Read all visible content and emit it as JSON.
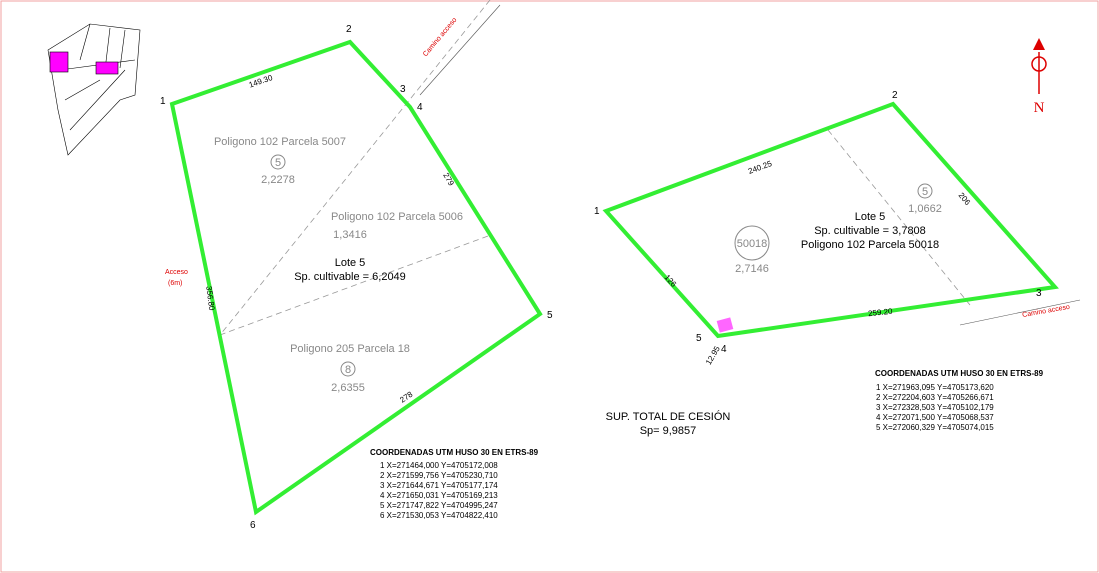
{
  "north": "N",
  "left_plot": {
    "vertices": [
      "1",
      "2",
      "3",
      "4",
      "5",
      "6"
    ],
    "edges": [
      "149.30",
      "279",
      "356.80",
      "278"
    ],
    "road": "Camino acceso",
    "access": [
      "Acceso",
      "(6m)"
    ],
    "parcels": [
      {
        "name": "Poligono 102 Parcela 5007",
        "id": "5",
        "area": "2,2278"
      },
      {
        "name": "Poligono 102 Parcela 5006",
        "area": "1,3416"
      },
      {
        "name": "Poligono 205 Parcela 18",
        "id": "8",
        "area": "2,6355"
      }
    ],
    "lot": "Lote 5",
    "cultivable": "Sp. cultivable = 6,2049",
    "coords_title": "COORDENADAS UTM HUSO 30 EN ETRS-89",
    "coords": [
      "1  X=271464,000  Y=4705172,008",
      "2  X=271599,756  Y=4705230,710",
      "3  X=271644,671  Y=4705177,174",
      "4  X=271650,031  Y=4705169,213",
      "5  X=271747,822  Y=4704995,247",
      "6  X=271530,053  Y=4704822,410"
    ]
  },
  "total": {
    "label": "SUP. TOTAL DE CESIÓN",
    "value": "Sp= 9,9857"
  },
  "right_plot": {
    "vertices": [
      "1",
      "2",
      "3",
      "4",
      "5"
    ],
    "edges": [
      "240.25",
      "206",
      "126",
      "259.20",
      "12.95"
    ],
    "road": "Camino acceso",
    "parcels": [
      {
        "id": "5",
        "area": "1,0662"
      },
      {
        "id": "50018",
        "area": "2,7146"
      }
    ],
    "lot": "Lote 5",
    "cultivable": "Sp. cultivable = 3,7808",
    "parcel_name": "Poligono 102 Parcela 50018",
    "coords_title": "COORDENADAS UTM HUSO 30 EN ETRS-89",
    "coords": [
      "1  X=271963,095  Y=4705173,620",
      "2  X=272204,603  Y=4705266,671",
      "3  X=272328,503  Y=4705102,179",
      "4  X=272071,500  Y=4705068,537",
      "5  X=272060,329  Y=4705074,015"
    ]
  }
}
